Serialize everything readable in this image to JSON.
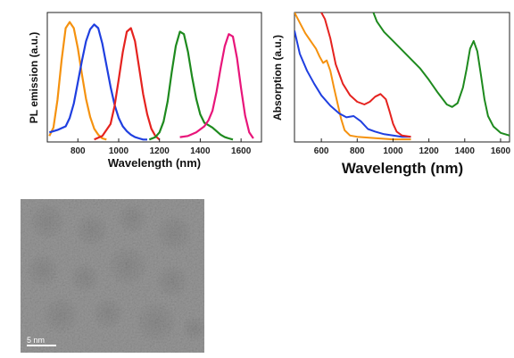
{
  "chart_data": [
    {
      "type": "line",
      "title": "",
      "xlabel": "Wavelength (nm)",
      "ylabel": "PL emission (a.u.)",
      "xlim": [
        650,
        1700
      ],
      "ylim": [
        0,
        1.08
      ],
      "xticks": [
        800,
        1000,
        1200,
        1400,
        1600
      ],
      "xtick_labels": [
        "800",
        "1000",
        "1200",
        "1400",
        "1600"
      ],
      "yticks_visible": false,
      "legend": "none",
      "series": [
        {
          "color": "#f5920f",
          "x": [
            660,
            680,
            700,
            720,
            740,
            760,
            780,
            800,
            820,
            840,
            860,
            880,
            900,
            920,
            940
          ],
          "y": [
            0.05,
            0.12,
            0.35,
            0.68,
            0.95,
            1.0,
            0.95,
            0.78,
            0.56,
            0.36,
            0.21,
            0.11,
            0.06,
            0.03,
            0.02
          ]
        },
        {
          "color": "#1f3fe0",
          "x": [
            660,
            700,
            740,
            760,
            780,
            800,
            820,
            840,
            860,
            880,
            900,
            920,
            940,
            960,
            980,
            1000,
            1020,
            1040,
            1060,
            1080,
            1100,
            1120,
            1140
          ],
          "y": [
            0.08,
            0.1,
            0.13,
            0.2,
            0.32,
            0.5,
            0.68,
            0.84,
            0.94,
            0.98,
            0.95,
            0.82,
            0.64,
            0.46,
            0.31,
            0.2,
            0.13,
            0.09,
            0.06,
            0.04,
            0.03,
            0.02,
            0.02
          ]
        },
        {
          "color": "#e5231f",
          "x": [
            880,
            920,
            960,
            980,
            1000,
            1020,
            1040,
            1060,
            1080,
            1100,
            1120,
            1140,
            1160,
            1180,
            1200
          ],
          "y": [
            0.02,
            0.05,
            0.15,
            0.3,
            0.52,
            0.75,
            0.92,
            0.95,
            0.84,
            0.62,
            0.4,
            0.23,
            0.11,
            0.05,
            0.02
          ]
        },
        {
          "color": "#1e8a1e",
          "x": [
            1150,
            1180,
            1200,
            1220,
            1240,
            1260,
            1280,
            1300,
            1320,
            1340,
            1360,
            1380,
            1400,
            1420,
            1440,
            1460,
            1480,
            1500,
            1520,
            1540,
            1560
          ],
          "y": [
            0.02,
            0.04,
            0.08,
            0.17,
            0.34,
            0.58,
            0.8,
            0.92,
            0.9,
            0.75,
            0.54,
            0.36,
            0.23,
            0.16,
            0.14,
            0.12,
            0.09,
            0.06,
            0.04,
            0.03,
            0.02
          ]
        },
        {
          "color": "#e8157a",
          "x": [
            1300,
            1340,
            1380,
            1420,
            1440,
            1460,
            1480,
            1500,
            1520,
            1540,
            1560,
            1580,
            1600,
            1620,
            1640,
            1660
          ],
          "y": [
            0.04,
            0.05,
            0.08,
            0.13,
            0.18,
            0.26,
            0.42,
            0.62,
            0.8,
            0.9,
            0.88,
            0.7,
            0.45,
            0.22,
            0.08,
            0.03
          ]
        }
      ]
    },
    {
      "type": "line",
      "title": "",
      "xlabel": "Wavelength (nm)",
      "ylabel": "Absorption (a.u.)",
      "xlim": [
        450,
        1650
      ],
      "ylim": [
        0,
        1.0
      ],
      "xticks": [
        600,
        800,
        1000,
        1200,
        1400,
        1600
      ],
      "xtick_labels": [
        "600",
        "800",
        "1000",
        "1200",
        "1400",
        "1600"
      ],
      "yticks_visible": false,
      "legend": "none",
      "series": [
        {
          "color": "#f5920f",
          "x": [
            450,
            480,
            510,
            530,
            550,
            570,
            590,
            610,
            630,
            650,
            670,
            690,
            710,
            730,
            760,
            800,
            900,
            1000,
            1100
          ],
          "y": [
            1.0,
            0.92,
            0.84,
            0.8,
            0.76,
            0.72,
            0.66,
            0.61,
            0.63,
            0.55,
            0.42,
            0.3,
            0.18,
            0.09,
            0.05,
            0.04,
            0.03,
            0.02,
            0.02
          ]
        },
        {
          "color": "#1f3fe0",
          "x": [
            450,
            480,
            520,
            560,
            600,
            650,
            700,
            740,
            780,
            820,
            860,
            900,
            950,
            1000,
            1050,
            1100
          ],
          "y": [
            0.86,
            0.68,
            0.55,
            0.45,
            0.36,
            0.28,
            0.22,
            0.19,
            0.2,
            0.16,
            0.1,
            0.08,
            0.06,
            0.05,
            0.04,
            0.04
          ]
        },
        {
          "color": "#e5231f",
          "x": [
            600,
            620,
            650,
            680,
            720,
            760,
            800,
            840,
            870,
            900,
            930,
            960,
            980,
            1000,
            1020,
            1050,
            1100
          ],
          "y": [
            1.0,
            0.95,
            0.8,
            0.6,
            0.45,
            0.36,
            0.31,
            0.29,
            0.31,
            0.35,
            0.37,
            0.33,
            0.24,
            0.14,
            0.08,
            0.05,
            0.04
          ]
        },
        {
          "color": "#1e8a1e",
          "x": [
            890,
            910,
            950,
            1000,
            1050,
            1100,
            1150,
            1200,
            1250,
            1300,
            1330,
            1360,
            1390,
            1410,
            1430,
            1450,
            1470,
            1490,
            1510,
            1530,
            1560,
            1600,
            1650
          ],
          "y": [
            1.0,
            0.93,
            0.85,
            0.78,
            0.71,
            0.64,
            0.57,
            0.48,
            0.38,
            0.29,
            0.27,
            0.3,
            0.42,
            0.56,
            0.72,
            0.78,
            0.7,
            0.52,
            0.33,
            0.2,
            0.12,
            0.07,
            0.05
          ]
        }
      ]
    }
  ],
  "tem": {
    "scale_bar_label": "5 nm"
  }
}
